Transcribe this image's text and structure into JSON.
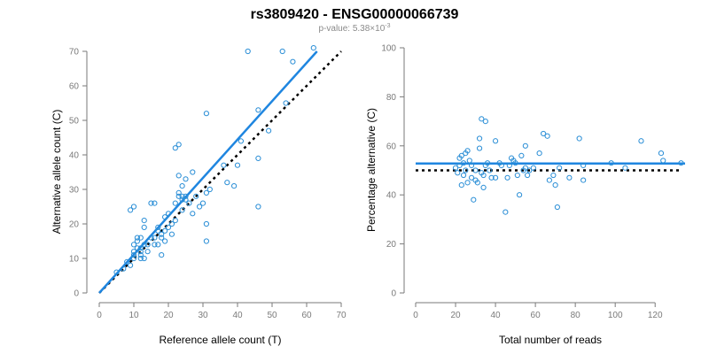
{
  "figure": {
    "title": "rs3809420 - ENSG00000066739",
    "subtitle_prefix": "p-value: 5.38×10",
    "subtitle_exponent": "-3"
  },
  "colors": {
    "points": "#2a8ed6",
    "fit_line": "#1f86e0",
    "reference_line": "#000000",
    "axes": "#7a7a7a"
  },
  "chart_data": [
    {
      "type": "scatter",
      "xlabel": "Reference allele count (T)",
      "ylabel": "Alternative allele count (C)",
      "xlim": [
        0,
        70
      ],
      "ylim": [
        0,
        70
      ],
      "xticks": [
        0,
        10,
        20,
        30,
        40,
        50,
        60,
        70
      ],
      "yticks": [
        0,
        10,
        20,
        30,
        40,
        50,
        60,
        70
      ],
      "fit_line": {
        "style": "solid",
        "from": [
          0,
          0
        ],
        "to": [
          63,
          70
        ]
      },
      "reference_line": {
        "style": "dotted",
        "from": [
          0,
          0
        ],
        "to": [
          70,
          70
        ]
      },
      "points": [
        [
          5,
          6
        ],
        [
          7,
          7
        ],
        [
          8,
          9
        ],
        [
          9,
          8
        ],
        [
          10,
          10
        ],
        [
          10,
          11
        ],
        [
          10,
          12
        ],
        [
          10,
          14
        ],
        [
          11,
          13
        ],
        [
          11,
          15
        ],
        [
          11,
          16
        ],
        [
          12,
          10
        ],
        [
          12,
          11
        ],
        [
          12,
          12
        ],
        [
          12,
          13
        ],
        [
          13,
          10
        ],
        [
          13,
          14
        ],
        [
          13,
          19
        ],
        [
          13,
          21
        ],
        [
          14,
          14
        ],
        [
          14,
          12
        ],
        [
          15,
          16
        ],
        [
          16,
          14
        ],
        [
          16,
          16
        ],
        [
          17,
          18
        ],
        [
          17,
          14
        ],
        [
          18,
          11
        ],
        [
          18,
          16
        ],
        [
          18,
          17
        ],
        [
          19,
          18
        ],
        [
          19,
          15
        ],
        [
          20,
          19
        ],
        [
          20,
          23
        ],
        [
          21,
          20
        ],
        [
          22,
          21
        ],
        [
          22,
          26
        ],
        [
          23,
          28
        ],
        [
          23,
          34
        ],
        [
          23,
          29
        ],
        [
          24,
          24
        ],
        [
          24,
          31
        ],
        [
          24,
          27
        ],
        [
          25,
          28
        ],
        [
          25,
          33
        ],
        [
          26,
          26
        ],
        [
          27,
          23
        ],
        [
          27,
          35
        ],
        [
          28,
          28
        ],
        [
          29,
          25
        ],
        [
          30,
          26
        ],
        [
          31,
          29
        ],
        [
          31,
          20
        ],
        [
          32,
          30
        ],
        [
          36,
          37
        ],
        [
          37,
          32
        ],
        [
          39,
          31
        ],
        [
          40,
          37
        ],
        [
          41,
          44
        ],
        [
          43,
          70
        ],
        [
          46,
          25
        ],
        [
          46,
          39
        ],
        [
          46,
          53
        ],
        [
          49,
          47
        ],
        [
          53,
          70
        ],
        [
          54,
          55
        ],
        [
          56,
          67
        ],
        [
          62,
          71
        ],
        [
          9,
          24
        ],
        [
          10,
          25
        ],
        [
          12,
          16
        ],
        [
          15,
          26
        ],
        [
          16,
          26
        ],
        [
          17,
          19
        ],
        [
          19,
          22
        ],
        [
          21,
          17
        ],
        [
          22,
          42
        ],
        [
          23,
          43
        ],
        [
          24,
          28
        ],
        [
          31,
          52
        ],
        [
          31,
          15
        ],
        [
          25,
          27
        ]
      ]
    },
    {
      "type": "scatter",
      "xlabel": "Total number of reads",
      "ylabel": "Percentage alternative (C)",
      "xlim": [
        0,
        135
      ],
      "ylim": [
        0,
        100
      ],
      "xticks": [
        0,
        20,
        40,
        60,
        80,
        100,
        120
      ],
      "yticks": [
        0,
        20,
        40,
        60,
        80,
        100
      ],
      "fit_line": {
        "style": "solid",
        "y": 52.8,
        "from_x": 0,
        "to_x": 135
      },
      "reference_line": {
        "style": "dotted",
        "y": 50,
        "from_x": 0,
        "to_x": 132
      },
      "points": [
        [
          20,
          51
        ],
        [
          21,
          49
        ],
        [
          22,
          52
        ],
        [
          22,
          55
        ],
        [
          23,
          56
        ],
        [
          23,
          44
        ],
        [
          24,
          48
        ],
        [
          24,
          53
        ],
        [
          25,
          57
        ],
        [
          25,
          50
        ],
        [
          26,
          58
        ],
        [
          26,
          45
        ],
        [
          27,
          54
        ],
        [
          28,
          47
        ],
        [
          28,
          52
        ],
        [
          29,
          38
        ],
        [
          30,
          46
        ],
        [
          30,
          50
        ],
        [
          31,
          45
        ],
        [
          32,
          59
        ],
        [
          32,
          63
        ],
        [
          33,
          49
        ],
        [
          33,
          71
        ],
        [
          34,
          48
        ],
        [
          34,
          43
        ],
        [
          35,
          52
        ],
        [
          35,
          70
        ],
        [
          36,
          53
        ],
        [
          37,
          50
        ],
        [
          38,
          47
        ],
        [
          40,
          62
        ],
        [
          40,
          47
        ],
        [
          42,
          53
        ],
        [
          43,
          52
        ],
        [
          45,
          33
        ],
        [
          46,
          47
        ],
        [
          47,
          52
        ],
        [
          48,
          55
        ],
        [
          49,
          54
        ],
        [
          50,
          53
        ],
        [
          51,
          48
        ],
        [
          52,
          40
        ],
        [
          53,
          56
        ],
        [
          54,
          50
        ],
        [
          55,
          51
        ],
        [
          55,
          60
        ],
        [
          56,
          48
        ],
        [
          57,
          50
        ],
        [
          59,
          51
        ],
        [
          62,
          57
        ],
        [
          64,
          65
        ],
        [
          66,
          64
        ],
        [
          67,
          46
        ],
        [
          69,
          48
        ],
        [
          70,
          44
        ],
        [
          71,
          35
        ],
        [
          72,
          51
        ],
        [
          77,
          47
        ],
        [
          82,
          63
        ],
        [
          84,
          46
        ],
        [
          84,
          52
        ],
        [
          98,
          53
        ],
        [
          113,
          62
        ],
        [
          123,
          57
        ],
        [
          124,
          54
        ],
        [
          133,
          53
        ],
        [
          105,
          51
        ]
      ]
    }
  ]
}
